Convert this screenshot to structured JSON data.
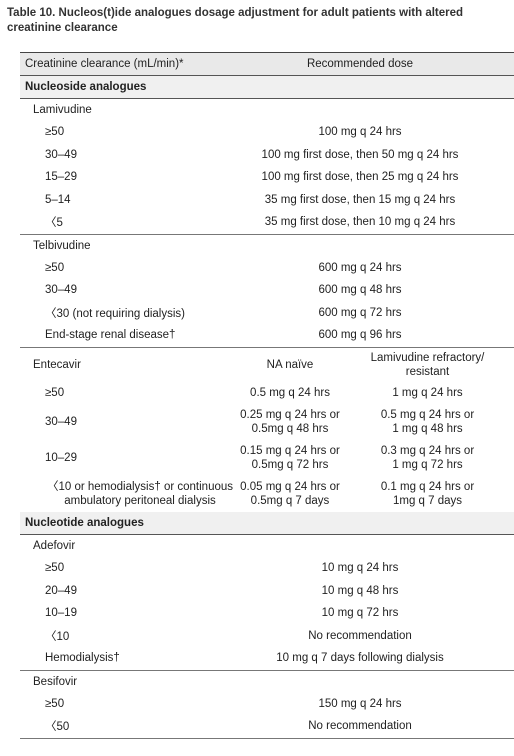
{
  "title": "Table 10. Nucleos(t)ide analogues dosage adjustment for adult patients with altered creatinine clearance",
  "header": [
    "Creatinine clearance (mL/min)*",
    "Recommended dose"
  ],
  "sections": [
    {
      "title": "Nucleoside analogues",
      "drugs": [
        {
          "name": "Lamivudine",
          "rows": [
            [
              "≥50",
              "100 mg q 24 hrs"
            ],
            [
              "30–49",
              "100 mg first dose, then 50 mg q 24 hrs"
            ],
            [
              "15–29",
              "100 mg first dose, then 25 mg q 24 hrs"
            ],
            [
              "5–14",
              "35 mg first dose, then 15 mg q 24 hrs"
            ],
            [
              "〈5",
              "35 mg first dose, then 10 mg q 24 hrs"
            ]
          ]
        },
        {
          "name": "Telbivudine",
          "rows": [
            [
              "≥50",
              "600 mg q 24 hrs"
            ],
            [
              "30–49",
              "600 mg q 48 hrs"
            ],
            [
              "〈30 (not requiring dialysis)",
              "600 mg q 72 hrs"
            ],
            [
              "End-stage renal disease†",
              "600 mg q 96 hrs"
            ]
          ]
        },
        {
          "name": "Entecavir",
          "columns": [
            "NA naïve",
            [
              "Lamivudine refractory/",
              "resistant"
            ]
          ],
          "rows": [
            [
              "≥50",
              "0.5 mg q 24 hrs",
              "1 mg q 24 hrs"
            ],
            [
              "30–49",
              [
                "0.25 mg q 24 hrs or",
                "0.5mg q 48 hrs"
              ],
              [
                "0.5 mg q 24 hrs or",
                "1 mg q 48 hrs"
              ]
            ],
            [
              "10–29",
              [
                "0.15 mg q 24 hrs or",
                "0.5mg q 72 hrs"
              ],
              [
                "0.3 mg q 24 hrs or",
                "1 mg q 72 hrs"
              ]
            ],
            [
              [
                "〈10 or hemodialysis† or continuous",
                "ambulatory peritoneal dialysis"
              ],
              [
                "0.05 mg q 24 hrs or",
                "0.5mg q 7 days"
              ],
              [
                "0.1 mg q 24 hrs or",
                "1mg q 7 days"
              ]
            ]
          ]
        }
      ]
    },
    {
      "title": "Nucleotide analogues",
      "drugs": [
        {
          "name": "Adefovir",
          "rows": [
            [
              "≥50",
              "10 mg q 24 hrs"
            ],
            [
              "20–49",
              "10 mg q 48 hrs"
            ],
            [
              "10–19",
              "10 mg q 72 hrs"
            ],
            [
              "〈10",
              "No recommendation"
            ],
            [
              "Hemodialysis†",
              "10 mg q 7 days following dialysis"
            ]
          ]
        },
        {
          "name": "Besifovir",
          "rows": [
            [
              "≥50",
              "150 mg q 24 hrs"
            ],
            [
              "〈50",
              "No recommendation"
            ]
          ]
        }
      ]
    }
  ]
}
